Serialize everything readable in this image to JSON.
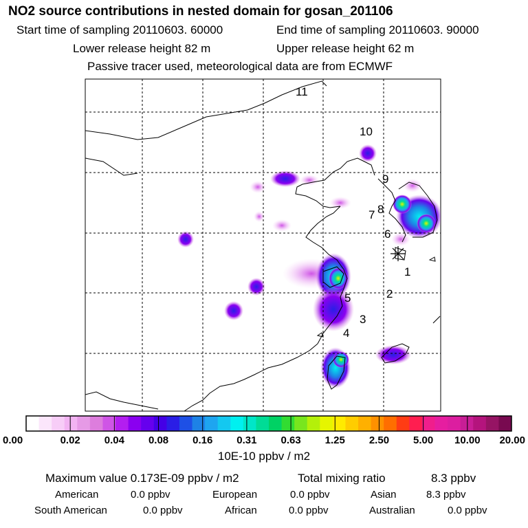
{
  "header": {
    "title": "NO2 source contributions in nested domain for gosan_201106",
    "start_time": "Start time of sampling 20110603. 60000",
    "end_time": "End time of sampling 20110603. 90000",
    "lower_release": "Lower release height   82 m",
    "upper_release": "Upper release height   62 m",
    "tracer_note": "Passive tracer used, meteorological data are from ECMWF"
  },
  "map": {
    "receptor_marker": "asterisk-icon",
    "labels": [
      {
        "id": "1",
        "text": "1"
      },
      {
        "id": "2",
        "text": "2"
      },
      {
        "id": "3",
        "text": "3"
      },
      {
        "id": "4",
        "text": "4"
      },
      {
        "id": "5",
        "text": "5"
      },
      {
        "id": "6",
        "text": "6"
      },
      {
        "id": "7",
        "text": "7"
      },
      {
        "id": "8",
        "text": "8"
      },
      {
        "id": "9",
        "text": "9"
      },
      {
        "id": "10",
        "text": "10"
      },
      {
        "id": "11",
        "text": "11"
      }
    ]
  },
  "colorbar": {
    "ticks": [
      "0.00",
      "0.02",
      "0.04",
      "0.08",
      "0.16",
      "0.31",
      "0.63",
      "1.25",
      "2.50",
      "5.00",
      "10.00",
      "20.00"
    ],
    "colors": [
      "#ffffff",
      "#fbe6fb",
      "#f7cdf7",
      "#f2b3f2",
      "#e69ae6",
      "#dd7ddd",
      "#cf55e6",
      "#b31ef0",
      "#8a00f0",
      "#6600ee",
      "#4400e6",
      "#2a1ee6",
      "#1e50e6",
      "#1e82e6",
      "#1ea5f0",
      "#14c8f0",
      "#00f0f0",
      "#00e6c8",
      "#00dc96",
      "#00d264",
      "#32dc32",
      "#78e61e",
      "#b4f00a",
      "#e6f500",
      "#ffeb00",
      "#ffcd00",
      "#ffb000",
      "#ff9100",
      "#ff6e00",
      "#ff3c14",
      "#ff1e50",
      "#f01e8c",
      "#e61ea0",
      "#dc1ea0",
      "#c81e96",
      "#b4147d",
      "#961464",
      "#780a50"
    ],
    "unit": "10E-10 ppbv / m2"
  },
  "summary": {
    "max_value": "Maximum value  0.173E-09 ppbv / m2",
    "total_label": "Total mixing ratio",
    "total_value": "8.3 ppbv",
    "regions": [
      {
        "name": "American",
        "value": "0.0 ppbv"
      },
      {
        "name": "European",
        "value": "0.0 ppbv"
      },
      {
        "name": "Asian",
        "value": "8.3 ppbv"
      },
      {
        "name": "South American",
        "value": "0.0 ppbv"
      },
      {
        "name": "African",
        "value": "0.0 ppbv"
      },
      {
        "name": "Australian",
        "value": "0.0 ppbv"
      }
    ]
  }
}
